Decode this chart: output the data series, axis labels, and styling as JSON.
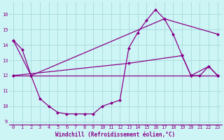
{
  "background_color": "#cef5f5",
  "grid_color": "#aadddd",
  "line_color": "#880088",
  "xlabel": "Windchill (Refroidissement éolien,°C)",
  "xlim": [
    -0.5,
    23.5
  ],
  "ylim": [
    8.8,
    16.8
  ],
  "yticks": [
    9,
    10,
    11,
    12,
    13,
    14,
    15,
    16
  ],
  "xticks": [
    0,
    1,
    2,
    3,
    4,
    5,
    6,
    7,
    8,
    9,
    10,
    11,
    12,
    13,
    14,
    15,
    16,
    17,
    18,
    19,
    20,
    21,
    22,
    23
  ],
  "series1_x": [
    0,
    1,
    2,
    3,
    4,
    5,
    6,
    7,
    8,
    9,
    10,
    11,
    12,
    13,
    14,
    15,
    16,
    17,
    18,
    19,
    20,
    21,
    22,
    23
  ],
  "series1_y": [
    14.3,
    13.7,
    12.0,
    10.5,
    10.0,
    9.6,
    9.5,
    9.5,
    9.5,
    9.5,
    10.0,
    10.2,
    10.4,
    13.8,
    14.8,
    15.6,
    16.3,
    15.7,
    14.7,
    13.3,
    12.0,
    12.0,
    12.6,
    12.0
  ],
  "series2_x": [
    0,
    2,
    17,
    23
  ],
  "series2_y": [
    14.3,
    12.0,
    15.7,
    14.7
  ],
  "series3_x": [
    0,
    23
  ],
  "series3_y": [
    12.0,
    12.0
  ],
  "series4_x": [
    0,
    13,
    19,
    20,
    22,
    23
  ],
  "series4_y": [
    12.0,
    12.8,
    13.3,
    12.0,
    12.6,
    12.0
  ]
}
